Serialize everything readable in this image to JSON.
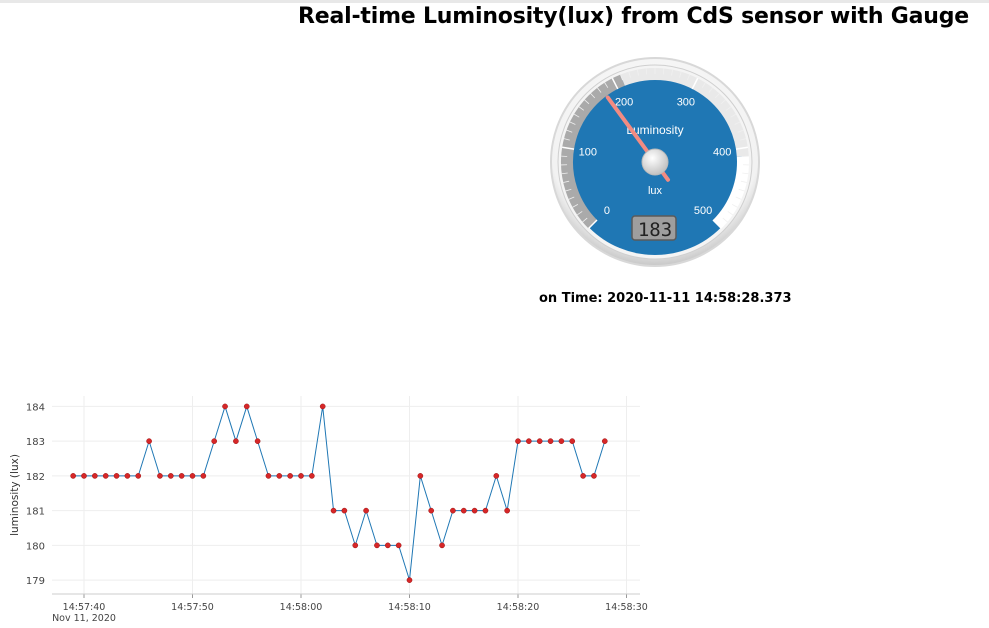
{
  "page": {
    "title": "Real-time Luminosity(lux) from CdS sensor with Gauge",
    "time_label": "on Time: 2020-11-11 14:58:28.373"
  },
  "gauge": {
    "title": "Luminosity",
    "units": "lux",
    "value": 183,
    "value_text": "183",
    "min": 0,
    "max": 500,
    "major_ticks": [
      "0",
      "100",
      "200",
      "300",
      "400",
      "500"
    ],
    "colors": {
      "face": "#1f77b4",
      "needle": "#f28b82",
      "low_band": "#aaaaaa",
      "high_band": "#ffffff"
    }
  },
  "chart_data": {
    "type": "line",
    "title": "",
    "xlabel": "",
    "ylabel": "luminosity (lux)",
    "x_ticks": [
      "14:57:40",
      "14:57:50",
      "14:58:00",
      "14:58:10",
      "14:58:20",
      "14:58:30"
    ],
    "x_date_label": "Nov 11, 2020",
    "y_ticks": [
      "179",
      "180",
      "181",
      "182",
      "183",
      "184"
    ],
    "ylim": [
      178.6,
      184.3
    ],
    "grid": true,
    "line_color": "#1f77b4",
    "marker_color": "#d62728",
    "series": [
      {
        "x": [
          "14:57:39",
          "14:57:40",
          "14:57:41",
          "14:57:42",
          "14:57:43",
          "14:57:44",
          "14:57:45",
          "14:57:46",
          "14:57:47",
          "14:57:48",
          "14:57:49",
          "14:57:50",
          "14:57:51",
          "14:57:52",
          "14:57:53",
          "14:57:54",
          "14:57:55",
          "14:57:56",
          "14:57:57",
          "14:57:58",
          "14:57:59",
          "14:58:00",
          "14:58:01",
          "14:58:02",
          "14:58:03",
          "14:58:04",
          "14:58:05",
          "14:58:06",
          "14:58:07",
          "14:58:08",
          "14:58:09",
          "14:58:10",
          "14:58:11",
          "14:58:12",
          "14:58:13",
          "14:58:14",
          "14:58:15",
          "14:58:16",
          "14:58:17",
          "14:58:18",
          "14:58:19",
          "14:58:20",
          "14:58:21",
          "14:58:22",
          "14:58:23",
          "14:58:24",
          "14:58:25",
          "14:58:26",
          "14:58:27",
          "14:58:28"
        ],
        "values": [
          182,
          182,
          182,
          182,
          182,
          182,
          182,
          183,
          182,
          182,
          182,
          182,
          182,
          183,
          184,
          183,
          184,
          183,
          182,
          182,
          182,
          182,
          182,
          184,
          181,
          181,
          180,
          181,
          180,
          180,
          180,
          179,
          182,
          181,
          180,
          181,
          181,
          181,
          181,
          182,
          181,
          183,
          183,
          183,
          183,
          183,
          183,
          182,
          182,
          183
        ]
      }
    ]
  }
}
